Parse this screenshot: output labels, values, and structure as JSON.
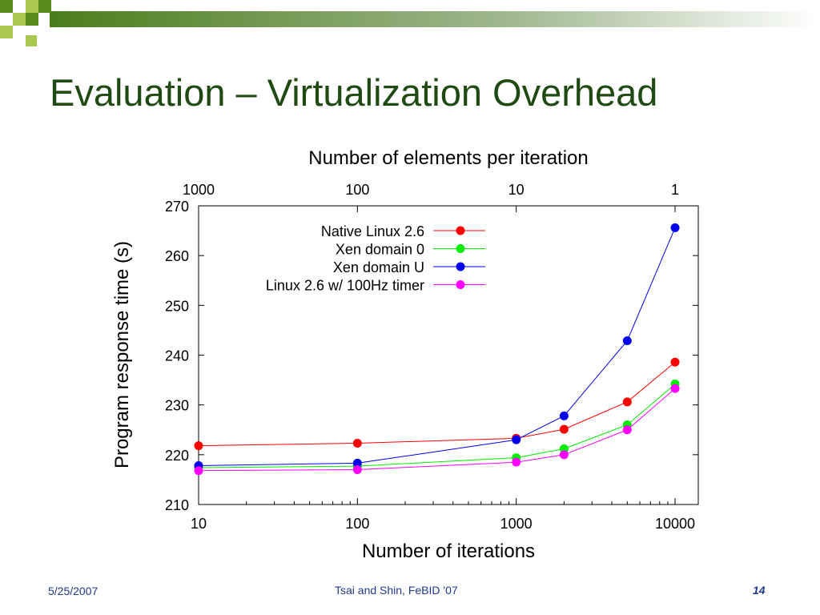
{
  "slide": {
    "title": "Evaluation – Virtualization Overhead",
    "footer_date": "5/25/2007",
    "footer_center": "Tsai and Shin, FeBID '07",
    "page_number": "14"
  },
  "colors": {
    "title": "#1f4a12",
    "footer": "#1f3a8a",
    "decoration_dark": "#5a8a1e",
    "decoration_light": "#a8c850"
  },
  "chart_data": {
    "type": "line",
    "x_scale": "log",
    "xlabel": "Number of iterations",
    "ylabel": "Program response time (s)",
    "x2label": "Number of elements per iteration",
    "xlim": [
      10,
      14000
    ],
    "ylim": [
      210,
      270
    ],
    "xticks": [
      10,
      100,
      1000,
      10000
    ],
    "xtick_labels": [
      "10",
      "100",
      "1000",
      "10000"
    ],
    "yticks": [
      210,
      220,
      230,
      240,
      250,
      260,
      270
    ],
    "ytick_labels": [
      "210",
      "220",
      "230",
      "240",
      "250",
      "260",
      "270"
    ],
    "top_ticks": [
      {
        "label": "1000",
        "x": 10
      },
      {
        "label": "100",
        "x": 100
      },
      {
        "label": "10",
        "x": 1000
      },
      {
        "label": "1",
        "x": 10000
      }
    ],
    "legend_position": "top-right",
    "grid": false,
    "x": [
      10,
      100,
      1000,
      2000,
      5000,
      10000
    ],
    "series": [
      {
        "name": "Native Linux 2.6",
        "color": "#ff0000",
        "values": [
          221.8,
          222.3,
          223.3,
          225.1,
          230.6,
          238.6
        ]
      },
      {
        "name": "Xen domain 0",
        "color": "#00ee00",
        "values": [
          217.4,
          217.7,
          219.4,
          221.2,
          226.0,
          234.2
        ]
      },
      {
        "name": "Xen domain U",
        "color": "#0000ee",
        "values": [
          217.8,
          218.3,
          223.0,
          227.8,
          242.9,
          265.6
        ]
      },
      {
        "name": "Linux 2.6 w/ 100Hz timer",
        "color": "#ff00ff",
        "values": [
          216.8,
          217.0,
          218.5,
          220.0,
          225.0,
          233.3
        ]
      }
    ]
  }
}
